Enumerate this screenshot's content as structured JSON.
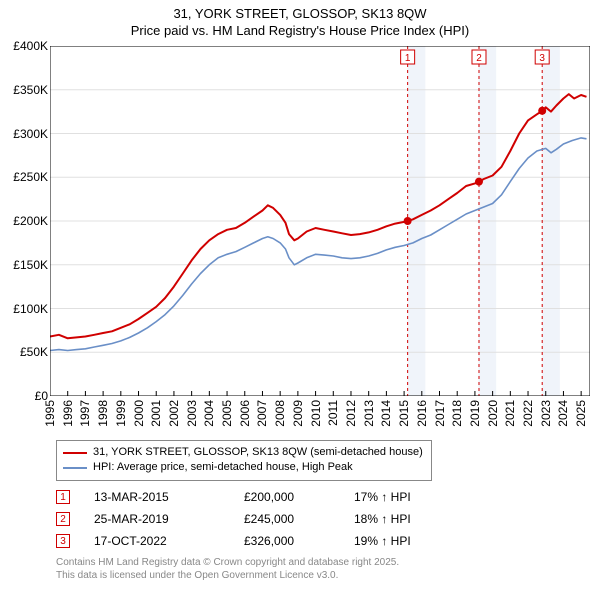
{
  "title": {
    "line1": "31, YORK STREET, GLOSSOP, SK13 8QW",
    "line2": "Price paid vs. HM Land Registry's House Price Index (HPI)"
  },
  "chart": {
    "type": "line",
    "background_color": "#ffffff",
    "plot_bg": "#ffffff",
    "grid_color": "#e0e0e0",
    "axis_color": "#000000",
    "tick_fontsize": 12,
    "title_fontsize": 13,
    "x_years": [
      1995,
      1996,
      1997,
      1998,
      1999,
      2000,
      2001,
      2002,
      2003,
      2004,
      2005,
      2006,
      2007,
      2008,
      2009,
      2010,
      2011,
      2012,
      2013,
      2014,
      2015,
      2016,
      2017,
      2018,
      2019,
      2020,
      2021,
      2022,
      2023,
      2024,
      2025
    ],
    "xlim": [
      1995,
      2025.5
    ],
    "xtick_rotation": -90,
    "ylim": [
      0,
      400000
    ],
    "ytick_step": 50000,
    "ytick_labels": [
      "£0",
      "£50K",
      "£100K",
      "£150K",
      "£200K",
      "£250K",
      "£300K",
      "£350K",
      "£400K"
    ],
    "shaded_bands": [
      {
        "from": 2015.2,
        "to": 2016.2,
        "color": "#f0f4fa"
      },
      {
        "from": 2019.2,
        "to": 2020.2,
        "color": "#f0f4fa"
      },
      {
        "from": 2022.8,
        "to": 2023.8,
        "color": "#f0f4fa"
      }
    ],
    "vlines": [
      {
        "x": 2015.2,
        "label": "1"
      },
      {
        "x": 2019.23,
        "label": "2"
      },
      {
        "x": 2022.8,
        "label": "3"
      }
    ],
    "vline_color": "#d00000",
    "vline_dash": "3,3",
    "marker_box_border": "#d00000",
    "marker_box_fill": "#ffffff",
    "series": [
      {
        "name": "31, YORK STREET, GLOSSOP, SK13 8QW (semi-detached house)",
        "color": "#d00000",
        "width": 2,
        "points": [
          [
            1995,
            68000
          ],
          [
            1995.5,
            70000
          ],
          [
            1996,
            66000
          ],
          [
            1996.5,
            67000
          ],
          [
            1997,
            68000
          ],
          [
            1997.5,
            70000
          ],
          [
            1998,
            72000
          ],
          [
            1998.5,
            74000
          ],
          [
            1999,
            78000
          ],
          [
            1999.5,
            82000
          ],
          [
            2000,
            88000
          ],
          [
            2000.5,
            95000
          ],
          [
            2001,
            102000
          ],
          [
            2001.5,
            112000
          ],
          [
            2002,
            125000
          ],
          [
            2002.5,
            140000
          ],
          [
            2003,
            155000
          ],
          [
            2003.5,
            168000
          ],
          [
            2004,
            178000
          ],
          [
            2004.5,
            185000
          ],
          [
            2005,
            190000
          ],
          [
            2005.5,
            192000
          ],
          [
            2006,
            198000
          ],
          [
            2006.5,
            205000
          ],
          [
            2007,
            212000
          ],
          [
            2007.3,
            218000
          ],
          [
            2007.6,
            215000
          ],
          [
            2008,
            207000
          ],
          [
            2008.3,
            198000
          ],
          [
            2008.5,
            185000
          ],
          [
            2008.8,
            178000
          ],
          [
            2009,
            180000
          ],
          [
            2009.5,
            188000
          ],
          [
            2010,
            192000
          ],
          [
            2010.5,
            190000
          ],
          [
            2011,
            188000
          ],
          [
            2011.5,
            186000
          ],
          [
            2012,
            184000
          ],
          [
            2012.5,
            185000
          ],
          [
            2013,
            187000
          ],
          [
            2013.5,
            190000
          ],
          [
            2014,
            194000
          ],
          [
            2014.5,
            197000
          ],
          [
            2015,
            199000
          ],
          [
            2015.2,
            200000
          ],
          [
            2015.5,
            202000
          ],
          [
            2016,
            207000
          ],
          [
            2016.5,
            212000
          ],
          [
            2017,
            218000
          ],
          [
            2017.5,
            225000
          ],
          [
            2018,
            232000
          ],
          [
            2018.5,
            240000
          ],
          [
            2019,
            243000
          ],
          [
            2019.23,
            245000
          ],
          [
            2019.5,
            248000
          ],
          [
            2020,
            252000
          ],
          [
            2020.5,
            262000
          ],
          [
            2021,
            280000
          ],
          [
            2021.5,
            300000
          ],
          [
            2022,
            315000
          ],
          [
            2022.5,
            322000
          ],
          [
            2022.8,
            326000
          ],
          [
            2023,
            330000
          ],
          [
            2023.3,
            325000
          ],
          [
            2023.6,
            332000
          ],
          [
            2024,
            340000
          ],
          [
            2024.3,
            345000
          ],
          [
            2024.6,
            340000
          ],
          [
            2025,
            344000
          ],
          [
            2025.3,
            342000
          ]
        ],
        "sale_markers": [
          {
            "x": 2015.2,
            "y": 200000
          },
          {
            "x": 2019.23,
            "y": 245000
          },
          {
            "x": 2022.8,
            "y": 326000
          }
        ],
        "sale_marker_color": "#d00000",
        "sale_marker_radius": 4
      },
      {
        "name": "HPI: Average price, semi-detached house, High Peak",
        "color": "#6a8fc7",
        "width": 1.6,
        "points": [
          [
            1995,
            52000
          ],
          [
            1995.5,
            53000
          ],
          [
            1996,
            52000
          ],
          [
            1996.5,
            53000
          ],
          [
            1997,
            54000
          ],
          [
            1997.5,
            56000
          ],
          [
            1998,
            58000
          ],
          [
            1998.5,
            60000
          ],
          [
            1999,
            63000
          ],
          [
            1999.5,
            67000
          ],
          [
            2000,
            72000
          ],
          [
            2000.5,
            78000
          ],
          [
            2001,
            85000
          ],
          [
            2001.5,
            93000
          ],
          [
            2002,
            103000
          ],
          [
            2002.5,
            115000
          ],
          [
            2003,
            128000
          ],
          [
            2003.5,
            140000
          ],
          [
            2004,
            150000
          ],
          [
            2004.5,
            158000
          ],
          [
            2005,
            162000
          ],
          [
            2005.5,
            165000
          ],
          [
            2006,
            170000
          ],
          [
            2006.5,
            175000
          ],
          [
            2007,
            180000
          ],
          [
            2007.3,
            182000
          ],
          [
            2007.6,
            180000
          ],
          [
            2008,
            175000
          ],
          [
            2008.3,
            168000
          ],
          [
            2008.5,
            158000
          ],
          [
            2008.8,
            150000
          ],
          [
            2009,
            152000
          ],
          [
            2009.5,
            158000
          ],
          [
            2010,
            162000
          ],
          [
            2010.5,
            161000
          ],
          [
            2011,
            160000
          ],
          [
            2011.5,
            158000
          ],
          [
            2012,
            157000
          ],
          [
            2012.5,
            158000
          ],
          [
            2013,
            160000
          ],
          [
            2013.5,
            163000
          ],
          [
            2014,
            167000
          ],
          [
            2014.5,
            170000
          ],
          [
            2015,
            172000
          ],
          [
            2015.5,
            175000
          ],
          [
            2016,
            180000
          ],
          [
            2016.5,
            184000
          ],
          [
            2017,
            190000
          ],
          [
            2017.5,
            196000
          ],
          [
            2018,
            202000
          ],
          [
            2018.5,
            208000
          ],
          [
            2019,
            212000
          ],
          [
            2019.5,
            216000
          ],
          [
            2020,
            220000
          ],
          [
            2020.5,
            230000
          ],
          [
            2021,
            245000
          ],
          [
            2021.5,
            260000
          ],
          [
            2022,
            272000
          ],
          [
            2022.5,
            280000
          ],
          [
            2023,
            283000
          ],
          [
            2023.3,
            278000
          ],
          [
            2023.6,
            282000
          ],
          [
            2024,
            288000
          ],
          [
            2024.5,
            292000
          ],
          [
            2025,
            295000
          ],
          [
            2025.3,
            294000
          ]
        ]
      }
    ]
  },
  "legend": {
    "border_color": "#888888",
    "fontsize": 11
  },
  "sales": [
    {
      "n": "1",
      "date": "13-MAR-2015",
      "price": "£200,000",
      "pct": "17% ↑ HPI"
    },
    {
      "n": "2",
      "date": "25-MAR-2019",
      "price": "£245,000",
      "pct": "18% ↑ HPI"
    },
    {
      "n": "3",
      "date": "17-OCT-2022",
      "price": "£326,000",
      "pct": "19% ↑ HPI"
    }
  ],
  "footer": {
    "line1": "Contains HM Land Registry data © Crown copyright and database right 2025.",
    "line2": "This data is licensed under the Open Government Licence v3.0.",
    "color": "#888888",
    "fontsize": 10
  }
}
